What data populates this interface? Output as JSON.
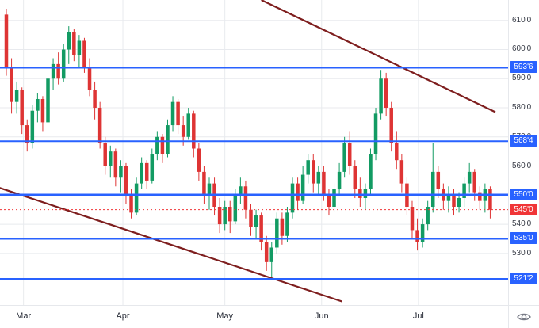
{
  "chart_data": {
    "type": "candlestick",
    "x_axis": {
      "months": [
        {
          "label": "Mar",
          "i": 3.3
        },
        {
          "label": "Apr",
          "i": 22.4
        },
        {
          "label": "May",
          "i": 42
        },
        {
          "label": "Jun",
          "i": 60.6
        },
        {
          "label": "Jul",
          "i": 79.2
        }
      ]
    },
    "y_axis": {
      "range": [
        512,
        617
      ],
      "ticks": [
        {
          "label": "610'0",
          "value": 610
        },
        {
          "label": "600'0",
          "value": 600
        },
        {
          "label": "590'0",
          "value": 590
        },
        {
          "label": "580'0",
          "value": 580
        },
        {
          "label": "570'0",
          "value": 570
        },
        {
          "label": "560'0",
          "value": 560
        },
        {
          "label": "550'0",
          "value": 550
        },
        {
          "label": "540'0",
          "value": 540
        },
        {
          "label": "530'0",
          "value": 530
        }
      ]
    },
    "candles": [
      [
        612,
        614,
        591,
        594
      ],
      [
        594,
        597,
        578,
        582
      ],
      [
        582,
        589,
        578,
        586
      ],
      [
        586,
        587,
        571,
        574
      ],
      [
        574,
        576,
        565,
        568
      ],
      [
        568,
        581,
        566,
        579
      ],
      [
        579,
        585,
        575,
        583
      ],
      [
        583,
        584,
        572,
        575
      ],
      [
        575,
        592,
        574,
        590
      ],
      [
        590,
        597,
        586,
        595
      ],
      [
        595,
        599,
        588,
        590
      ],
      [
        590,
        602,
        589,
        600
      ],
      [
        600,
        608,
        595,
        606
      ],
      [
        606,
        607,
        596,
        598
      ],
      [
        598,
        605,
        594,
        603
      ],
      [
        603,
        604,
        592,
        594
      ],
      [
        594,
        597,
        584,
        586
      ],
      [
        586,
        589,
        576,
        580
      ],
      [
        580,
        582,
        566,
        568
      ],
      [
        568,
        570,
        557,
        560
      ],
      [
        560,
        567,
        556,
        565
      ],
      [
        565,
        566,
        553,
        556
      ],
      [
        556,
        562,
        551,
        560
      ],
      [
        560,
        561,
        547,
        550
      ],
      [
        550,
        552,
        542,
        544
      ],
      [
        544,
        556,
        543,
        554
      ],
      [
        554,
        563,
        552,
        561
      ],
      [
        561,
        562,
        552,
        555
      ],
      [
        555,
        566,
        554,
        564
      ],
      [
        564,
        572,
        562,
        570
      ],
      [
        570,
        571,
        561,
        564
      ],
      [
        564,
        576,
        563,
        574
      ],
      [
        574,
        584,
        572,
        582
      ],
      [
        582,
        583,
        571,
        574
      ],
      [
        574,
        577,
        567,
        570
      ],
      [
        570,
        580,
        569,
        578
      ],
      [
        578,
        579,
        563,
        566
      ],
      [
        566,
        568,
        555,
        558
      ],
      [
        558,
        560,
        547,
        550
      ],
      [
        550,
        556,
        545,
        554
      ],
      [
        554,
        556,
        543,
        546
      ],
      [
        546,
        549,
        537,
        540
      ],
      [
        540,
        548,
        538,
        546
      ],
      [
        546,
        548,
        537,
        541
      ],
      [
        541,
        552,
        540,
        550
      ],
      [
        550,
        556,
        547,
        553
      ],
      [
        553,
        555,
        542,
        545
      ],
      [
        545,
        547,
        536,
        539
      ],
      [
        539,
        545,
        535,
        543
      ],
      [
        543,
        544,
        531,
        534
      ],
      [
        534,
        536,
        524,
        527
      ],
      [
        527,
        534,
        522,
        532
      ],
      [
        532,
        544,
        530,
        542
      ],
      [
        542,
        544,
        533,
        536
      ],
      [
        536,
        546,
        534,
        544
      ],
      [
        544,
        556,
        542,
        554
      ],
      [
        554,
        556,
        545,
        548
      ],
      [
        548,
        560,
        547,
        557
      ],
      [
        557,
        564,
        554,
        562
      ],
      [
        562,
        564,
        551,
        554
      ],
      [
        554,
        560,
        550,
        558
      ],
      [
        558,
        560,
        548,
        550
      ],
      [
        550,
        552,
        543,
        546
      ],
      [
        546,
        554,
        544,
        552
      ],
      [
        552,
        561,
        550,
        558
      ],
      [
        558,
        570,
        556,
        568
      ],
      [
        568,
        572,
        557,
        560
      ],
      [
        560,
        562,
        549,
        552
      ],
      [
        552,
        556,
        546,
        549
      ],
      [
        549,
        554,
        545,
        552
      ],
      [
        552,
        566,
        550,
        564
      ],
      [
        564,
        580,
        562,
        578
      ],
      [
        578,
        593,
        576,
        590
      ],
      [
        590,
        592,
        577,
        580
      ],
      [
        580,
        582,
        565,
        568
      ],
      [
        568,
        572,
        559,
        562
      ],
      [
        562,
        564,
        551,
        554
      ],
      [
        554,
        556,
        543,
        546
      ],
      [
        546,
        548,
        535,
        538
      ],
      [
        538,
        542,
        531,
        534
      ],
      [
        534,
        542,
        532,
        540
      ],
      [
        540,
        548,
        538,
        546
      ],
      [
        546,
        568,
        544,
        558
      ],
      [
        558,
        560,
        549,
        552
      ],
      [
        552,
        554,
        545,
        548
      ],
      [
        548,
        553,
        544,
        550
      ],
      [
        550,
        552,
        543,
        546
      ],
      [
        546,
        551,
        544,
        549
      ],
      [
        549,
        556,
        546,
        554
      ],
      [
        554,
        561,
        551,
        558
      ],
      [
        558,
        559,
        548,
        551
      ],
      [
        551,
        553,
        545,
        548
      ],
      [
        548,
        554,
        544,
        552
      ],
      [
        552,
        553,
        542,
        545
      ]
    ],
    "levels": [
      {
        "label": "593'6",
        "value": 593.75,
        "emphasis": false
      },
      {
        "label": "568'4",
        "value": 568.5,
        "emphasis": false
      },
      {
        "label": "550'0",
        "value": 550,
        "emphasis": true
      },
      {
        "label": "535'0",
        "value": 535,
        "emphasis": false
      },
      {
        "label": "521'2",
        "value": 521.25,
        "emphasis": false
      }
    ],
    "last_price": {
      "label": "545'0",
      "value": 545
    },
    "trendlines": [
      {
        "name": "upper-channel-trendline",
        "from": {
          "i": 49,
          "p": 617
        },
        "to": {
          "i": 94,
          "p": 578.5
        }
      },
      {
        "name": "lower-channel-trendline",
        "from": {
          "i": -1.3,
          "p": 552.5
        },
        "to": {
          "i": 64.5,
          "p": 513.5
        }
      }
    ],
    "colors": {
      "up": "#129b63",
      "down": "#de3434",
      "level": "#2962ff",
      "last_price": "#f03537",
      "trendline": "#7e1e1e",
      "grid": "#e8eaee",
      "axis_text": "#363a45",
      "background": "#ffffff",
      "badge_text": "#ffffff"
    }
  },
  "icons": {
    "corner": "eye-icon"
  }
}
